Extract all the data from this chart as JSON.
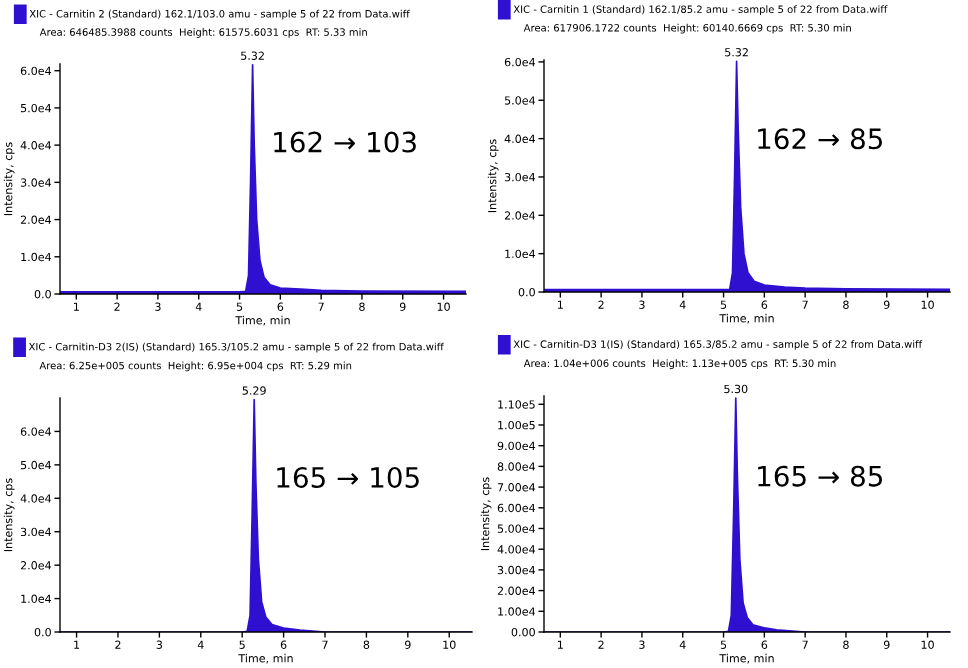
{
  "chart_data": [
    {
      "type": "area",
      "subtitle": "Area: 646485.3988 counts  Height: 61575.6031 cps  RT: 5.33 min",
      "xlabel": "Time, min",
      "ylabel": "Intensity, cps",
      "legend": "top left",
      "xlim": [
        0.6,
        10.55
      ],
      "xticks": [
        1,
        2,
        3,
        4,
        5,
        6,
        7,
        8,
        9,
        10
      ],
      "ylim": [
        0,
        61800
      ],
      "yticks": [
        {
          "value": 0,
          "label": "0.0"
        },
        {
          "value": 10000,
          "label": "1.0e4"
        },
        {
          "value": 20000,
          "label": "2.0e4"
        },
        {
          "value": 30000,
          "label": "3.0e4"
        },
        {
          "value": 40000,
          "label": "4.0e4"
        },
        {
          "value": 50000,
          "label": "5.0e4"
        },
        {
          "value": 60000,
          "label": "6.0e4"
        }
      ],
      "annotations": [
        {
          "text": "5.32",
          "x": 5.32,
          "y": 61575
        },
        "162 → 103"
      ],
      "series": [
        {
          "name": "XIC - Carnitin 2 (Standard) 162.1/103.0 amu - sample 5 of 22 from Data.wiff",
          "color": "#3010d0",
          "x": [
            0.6,
            5.0,
            5.15,
            5.22,
            5.27,
            5.32,
            5.36,
            5.42,
            5.5,
            5.6,
            5.75,
            6.0,
            6.5,
            7.0,
            8.0,
            10.55
          ],
          "values": [
            600,
            600,
            700,
            5000,
            30000,
            61575,
            40000,
            20000,
            9000,
            4500,
            2500,
            1600,
            1300,
            1000,
            800,
            700
          ]
        }
      ]
    },
    {
      "type": "area",
      "subtitle": "Area: 617906.1722 counts  Height: 60140.6669 cps  RT: 5.30 min",
      "xlabel": "Time, min",
      "ylabel": "Intensity, cps",
      "legend": "top left",
      "xlim": [
        0.6,
        10.55
      ],
      "xticks": [
        1,
        2,
        3,
        4,
        5,
        6,
        7,
        8,
        9,
        10
      ],
      "ylim": [
        0,
        60500
      ],
      "yticks": [
        {
          "value": 0,
          "label": "0.0"
        },
        {
          "value": 10000,
          "label": "1.0e4"
        },
        {
          "value": 20000,
          "label": "2.0e4"
        },
        {
          "value": 30000,
          "label": "3.0e4"
        },
        {
          "value": 40000,
          "label": "4.0e4"
        },
        {
          "value": 50000,
          "label": "5.0e4"
        },
        {
          "value": 60000,
          "label": "6.0e4"
        }
      ],
      "annotations": [
        {
          "text": "5.32",
          "x": 5.32,
          "y": 60140
        },
        "162 → 85"
      ],
      "series": [
        {
          "name": "XIC - Carnitin 1 (Standard) 162.1/85.2 amu - sample 5 of 22 from Data.wiff",
          "color": "#3010d0",
          "x": [
            0.6,
            5.0,
            5.15,
            5.22,
            5.27,
            5.32,
            5.36,
            5.42,
            5.5,
            5.6,
            5.75,
            6.0,
            6.5,
            7.0,
            8.0,
            10.55
          ],
          "values": [
            600,
            600,
            700,
            5000,
            30000,
            60140,
            42000,
            22000,
            10000,
            5000,
            2800,
            1800,
            1300,
            1000,
            800,
            700
          ]
        }
      ]
    },
    {
      "type": "area",
      "subtitle": "Area: 6.25e+005 counts  Height: 6.95e+004 cps  RT: 5.29 min",
      "xlabel": "Time, min",
      "ylabel": "Intensity, cps",
      "legend": "top left",
      "xlim": [
        0.6,
        10.55
      ],
      "xticks": [
        1,
        2,
        3,
        4,
        5,
        6,
        7,
        8,
        9,
        10
      ],
      "ylim": [
        0,
        70000
      ],
      "yticks": [
        {
          "value": 0,
          "label": "0.0"
        },
        {
          "value": 10000,
          "label": "1.0e4"
        },
        {
          "value": 20000,
          "label": "2.0e4"
        },
        {
          "value": 30000,
          "label": "3.0e4"
        },
        {
          "value": 40000,
          "label": "4.0e4"
        },
        {
          "value": 50000,
          "label": "5.0e4"
        },
        {
          "value": 60000,
          "label": "6.0e4"
        }
      ],
      "annotations": [
        {
          "text": "5.29",
          "x": 5.29,
          "y": 69500
        },
        "165 → 105"
      ],
      "series": [
        {
          "name": "XIC - Carnitin-D3 2(IS) (Standard) 165.3/105.2 amu - sample 5 of 22 from Data.wiff",
          "color": "#3010d0",
          "x": [
            0.6,
            5.0,
            5.12,
            5.19,
            5.24,
            5.29,
            5.33,
            5.39,
            5.47,
            5.57,
            5.72,
            6.0,
            6.4,
            7.0,
            10.55
          ],
          "values": [
            0,
            0,
            200,
            5000,
            35000,
            69500,
            45000,
            22000,
            9000,
            4500,
            2200,
            1200,
            600,
            0,
            0
          ]
        }
      ]
    },
    {
      "type": "area",
      "subtitle": "Area: 1.04e+006 counts  Height: 1.13e+005 cps  RT: 5.30 min",
      "xlabel": "Time, min",
      "ylabel": "Intensity, cps",
      "legend": "top left",
      "xlim": [
        0.6,
        10.55
      ],
      "xticks": [
        1,
        2,
        3,
        4,
        5,
        6,
        7,
        8,
        9,
        10
      ],
      "ylim": [
        0,
        114000
      ],
      "yticks": [
        {
          "value": 0,
          "label": "0.00"
        },
        {
          "value": 10000,
          "label": "1.00e4"
        },
        {
          "value": 20000,
          "label": "2.00e4"
        },
        {
          "value": 30000,
          "label": "3.00e4"
        },
        {
          "value": 40000,
          "label": "4.00e4"
        },
        {
          "value": 50000,
          "label": "5.00e4"
        },
        {
          "value": 60000,
          "label": "6.00e4"
        },
        {
          "value": 70000,
          "label": "7.00e4"
        },
        {
          "value": 80000,
          "label": "8.00e4"
        },
        {
          "value": 90000,
          "label": "9.00e4"
        },
        {
          "value": 100000,
          "label": "1.00e5"
        },
        {
          "value": 110000,
          "label": "1.10e5"
        }
      ],
      "annotations": [
        {
          "text": "5.30",
          "x": 5.3,
          "y": 113000
        },
        "165 → 85"
      ],
      "series": [
        {
          "name": "XIC - Carnitin-D3 1(IS) (Standard) 165.3/85.2 amu - sample 5 of 22 from Data.wiff",
          "color": "#3010d0",
          "x": [
            0.6,
            5.0,
            5.12,
            5.19,
            5.25,
            5.3,
            5.34,
            5.4,
            5.48,
            5.58,
            5.72,
            6.0,
            6.3,
            7.0,
            10.55
          ],
          "values": [
            0,
            0,
            300,
            8000,
            60000,
            113000,
            75000,
            35000,
            14000,
            7000,
            3500,
            2000,
            1000,
            0,
            0
          ]
        }
      ]
    }
  ]
}
